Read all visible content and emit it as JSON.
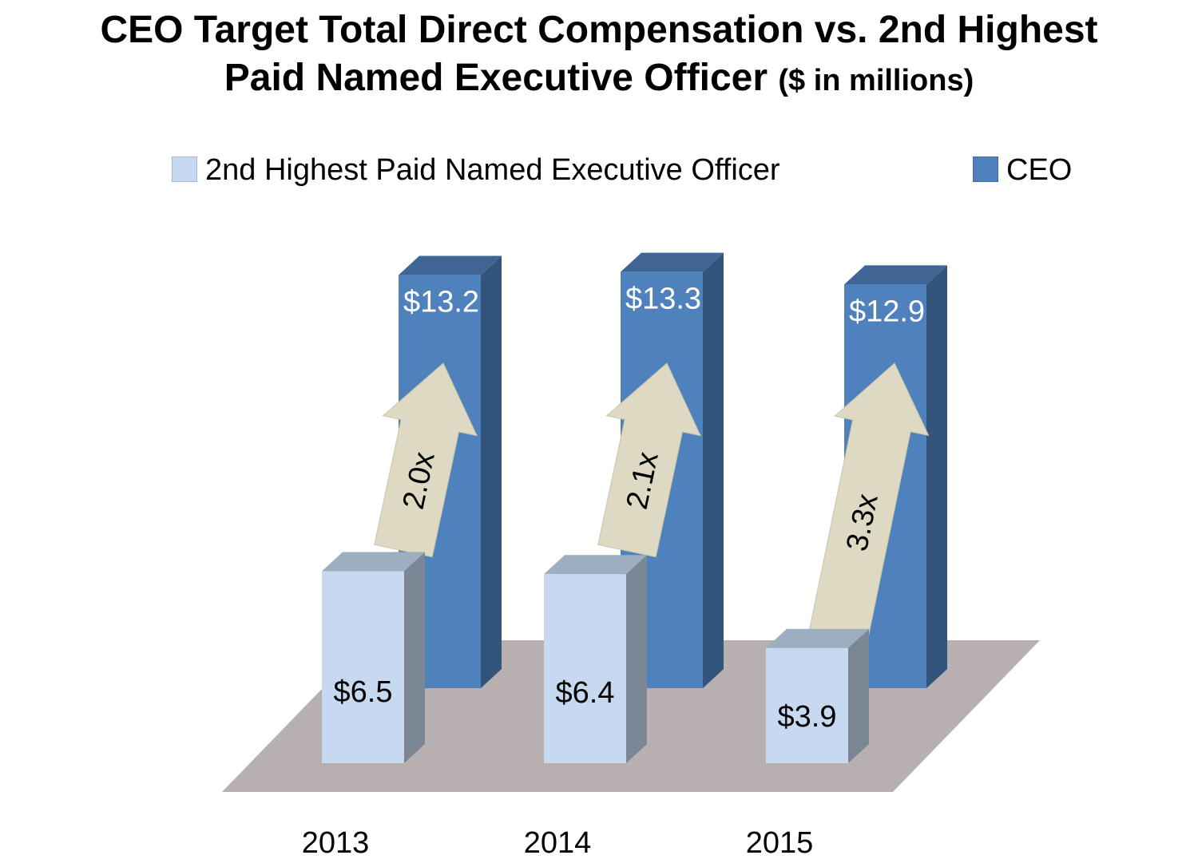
{
  "chart_data": {
    "type": "bar",
    "title_main": "CEO Target Total Direct Compensation vs. 2nd Highest Paid Named Executive Officer",
    "title_unit": "($ in millions)",
    "categories": [
      "2013",
      "2014",
      "2015"
    ],
    "series": [
      {
        "name": "2nd Highest Paid Named Executive Officer",
        "values": [
          6.5,
          6.4,
          3.9
        ],
        "labels": [
          "$6.5",
          "$6.4",
          "$3.9"
        ],
        "color": "#C6D9F1"
      },
      {
        "name": "CEO",
        "values": [
          13.2,
          13.3,
          12.9
        ],
        "labels": [
          "$13.2",
          "$13.3",
          "$12.9"
        ],
        "color": "#4F81BD"
      }
    ],
    "ratios": [
      "2.0x",
      "2.1x",
      "3.3x"
    ],
    "arrow_color": "#DDD9C3",
    "floor_color": "#B8B0B0",
    "grid": false,
    "legend_position": "top"
  }
}
